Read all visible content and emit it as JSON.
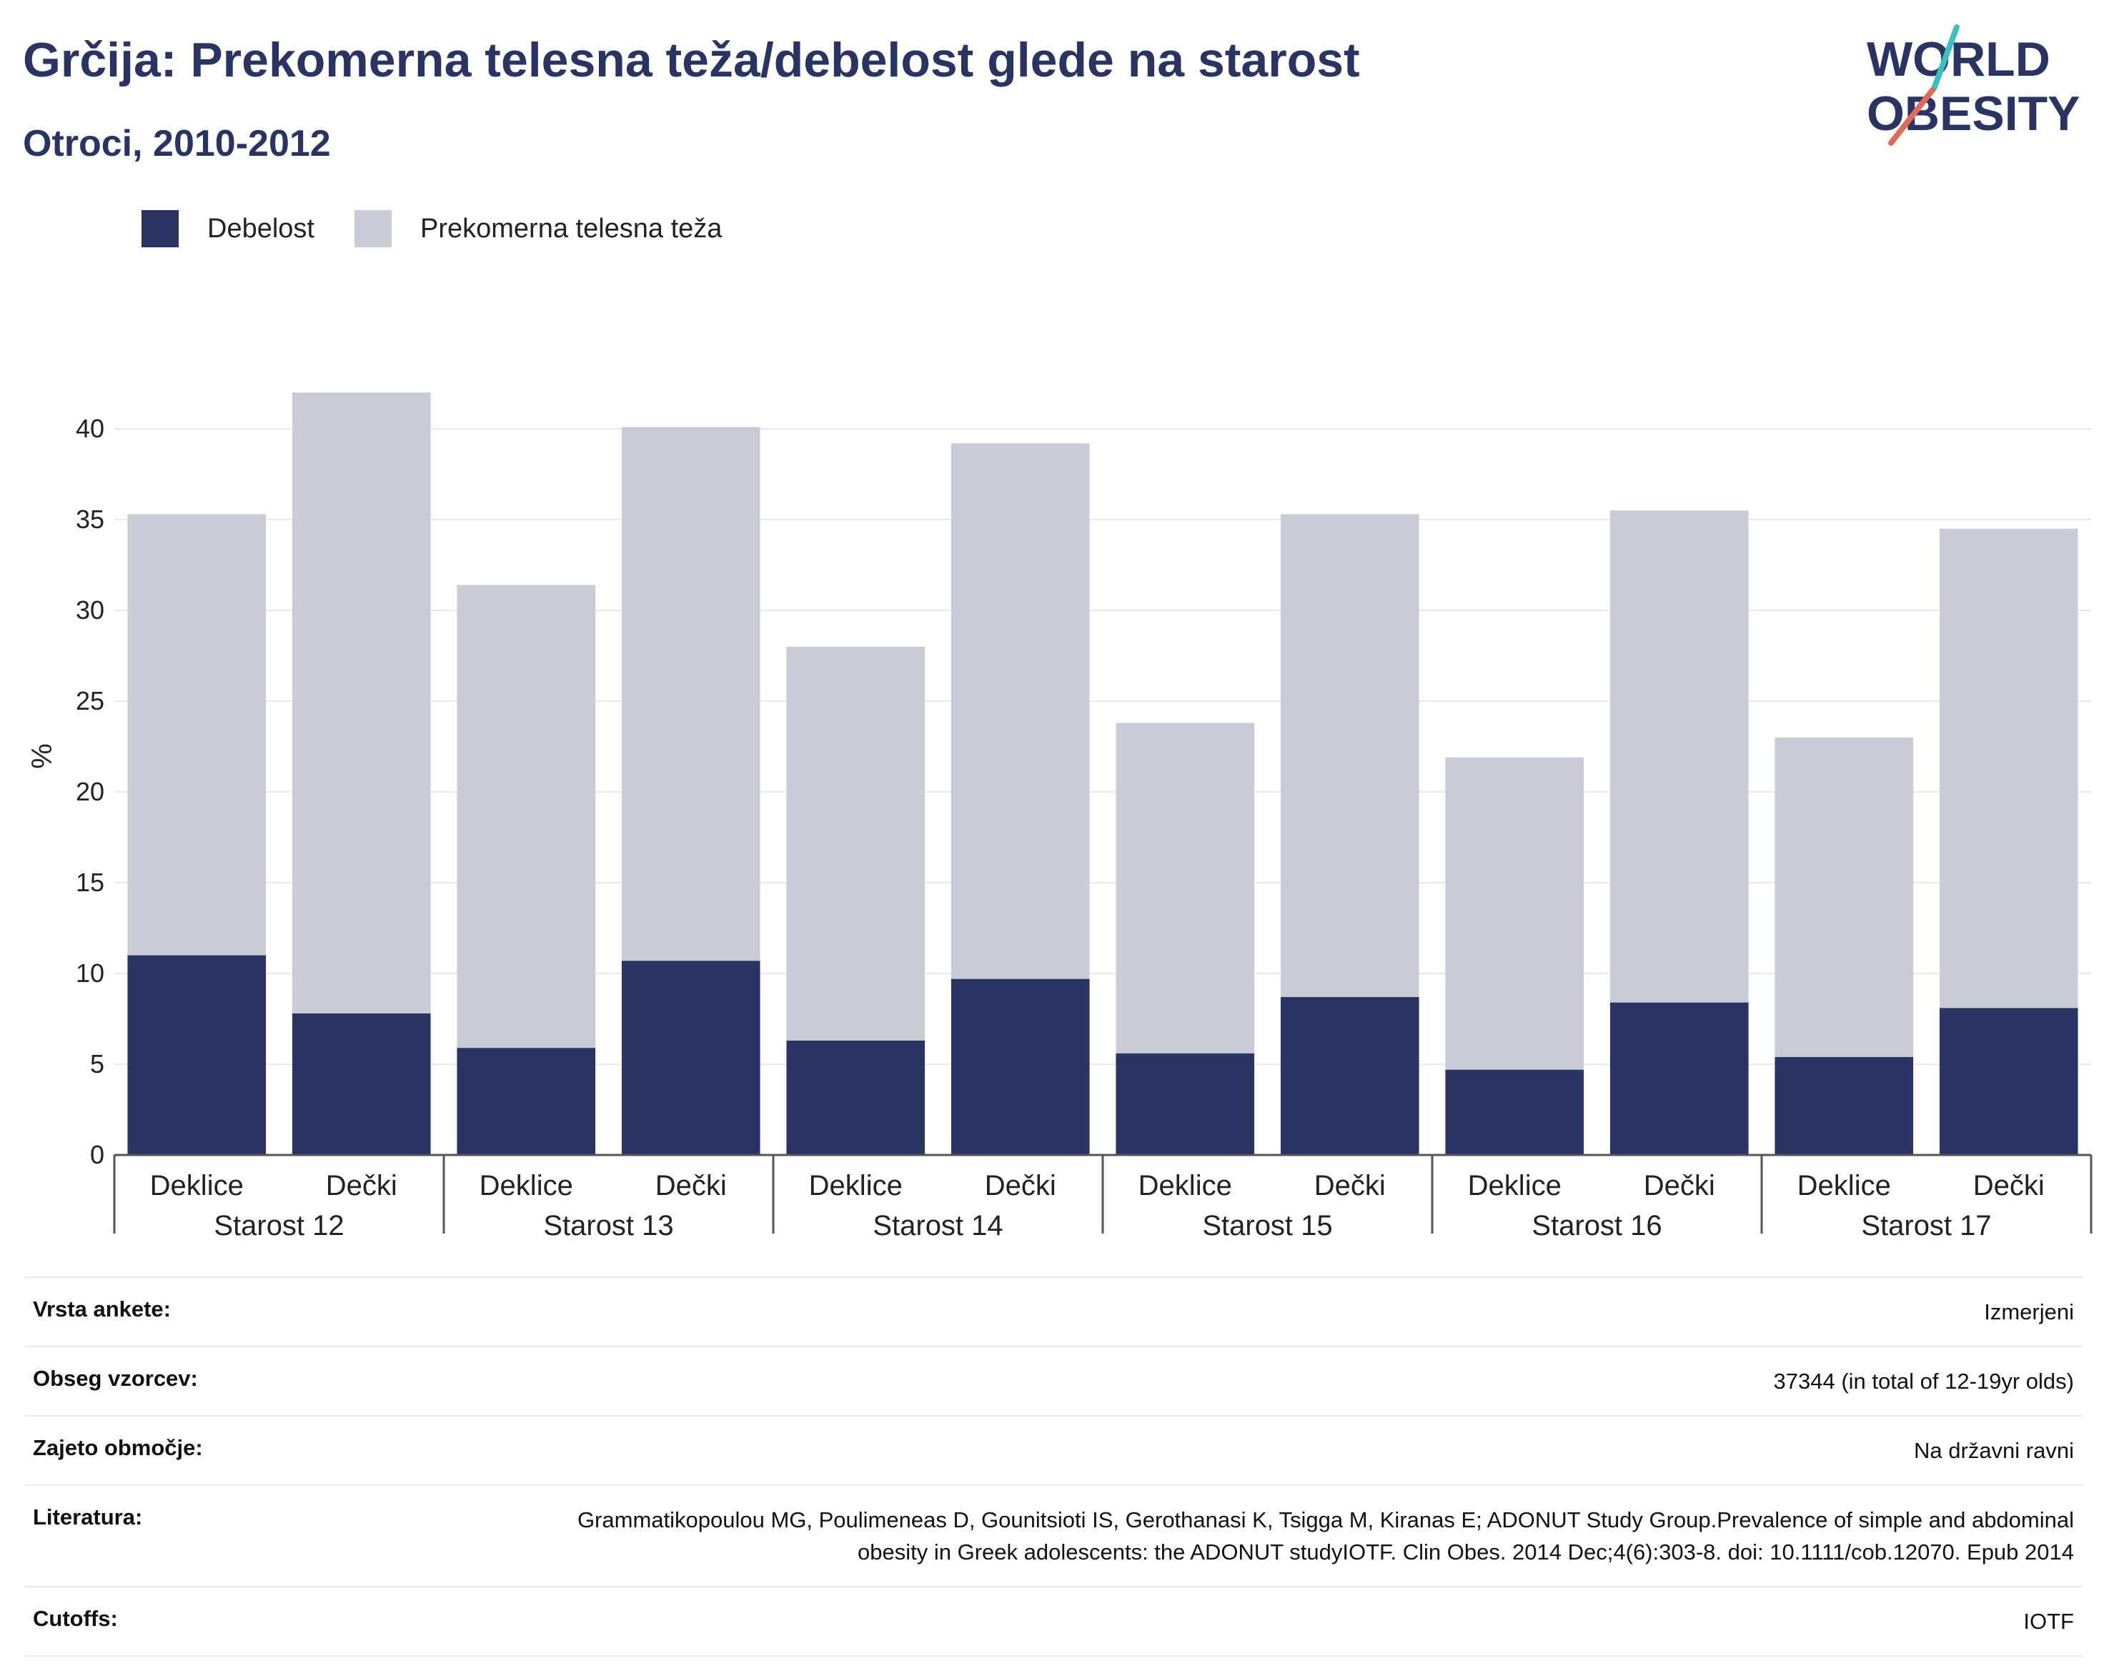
{
  "header": {
    "title": "Grčija: Prekomerna telesna teža/debelost glede na starost",
    "subtitle": "Otroci, 2010-2012"
  },
  "logo": {
    "line1": "WORLD",
    "line2": "OBESITY"
  },
  "colors": {
    "obesity": "#2a3462",
    "overweight": "#c9cbd6",
    "grid": "#e6e9ef",
    "axis": "#555555"
  },
  "chart_data": {
    "type": "bar",
    "stacked": true,
    "ylabel": "%",
    "ylim": [
      0,
      42
    ],
    "yticks": [
      0,
      5,
      10,
      15,
      20,
      25,
      30,
      35,
      40
    ],
    "grid": true,
    "legend_position": "top-left",
    "groups": [
      "Starost 12",
      "Starost 13",
      "Starost 14",
      "Starost 15",
      "Starost 16",
      "Starost 17"
    ],
    "subcategories": [
      "Deklice",
      "Dečki"
    ],
    "series": [
      {
        "name": "Debelost",
        "values": [
          11,
          7.8,
          5.9,
          10.7,
          6.3,
          9.7,
          5.6,
          8.7,
          4.7,
          8.4,
          5.4,
          8.1
        ]
      },
      {
        "name": "Prekomerna telesna teža",
        "values": [
          24.3,
          34.2,
          25.5,
          29.4,
          21.7,
          29.5,
          18.2,
          26.6,
          17.2,
          27.1,
          17.6,
          26.4
        ]
      }
    ]
  },
  "info": [
    {
      "label": "Vrsta ankete:",
      "value": "Izmerjeni"
    },
    {
      "label": "Obseg vzorcev:",
      "value": "37344 (in total of 12-19yr olds)"
    },
    {
      "label": "Zajeto območje:",
      "value": "Na državni ravni"
    },
    {
      "label": "Literatura:",
      "value": "Grammatikopoulou MG, Poulimeneas D, Gounitsioti IS, Gerothanasi K, Tsigga M, Kiranas E; ADONUT Study Group.Prevalence of simple and abdominal obesity in Greek adolescents: the ADONUT studyIOTF. Clin Obes. 2014 Dec;4(6):303-8. doi: 10.1111/cob.12070. Epub 2014"
    },
    {
      "label": "Cutoffs:",
      "value": "IOTF"
    }
  ]
}
